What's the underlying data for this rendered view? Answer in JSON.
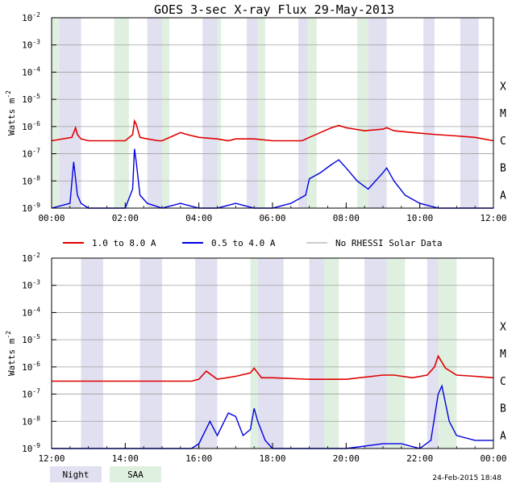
{
  "chart_data": [
    {
      "type": "line",
      "title": "GOES 3-sec X-ray Flux   29-May-2013",
      "ylabel": "Watts m",
      "ylabel_sup": "-2",
      "yscale": "log",
      "ylim": [
        1e-09,
        0.01
      ],
      "y_ticks": [
        {
          "base": "10",
          "exp": "-2"
        },
        {
          "base": "10",
          "exp": "-3"
        },
        {
          "base": "10",
          "exp": "-4"
        },
        {
          "base": "10",
          "exp": "-5"
        },
        {
          "base": "10",
          "exp": "-6"
        },
        {
          "base": "10",
          "exp": "-7"
        },
        {
          "base": "10",
          "exp": "-8"
        },
        {
          "base": "10",
          "exp": "-9"
        }
      ],
      "x_ticks": [
        "00:00",
        "02:00",
        "04:00",
        "06:00",
        "08:00",
        "10:00",
        "12:00"
      ],
      "xlim_hours": [
        0,
        12
      ],
      "flare_classes": [
        "X",
        "M",
        "C",
        "B",
        "A"
      ],
      "night_hours": [
        [
          0.2,
          0.8
        ],
        [
          2.6,
          3.0
        ],
        [
          4.1,
          4.5
        ],
        [
          5.3,
          5.6
        ],
        [
          6.7,
          6.95
        ],
        [
          8.6,
          9.1
        ],
        [
          10.1,
          10.4
        ],
        [
          11.1,
          11.6
        ]
      ],
      "saa_hours": [
        [
          0.0,
          0.2
        ],
        [
          1.7,
          2.1
        ],
        [
          3.0,
          3.2
        ],
        [
          4.5,
          4.6
        ],
        [
          5.6,
          5.8
        ],
        [
          6.95,
          7.2
        ],
        [
          8.3,
          8.6
        ]
      ],
      "series": [
        {
          "name": "1.0 to 8.0 A",
          "color": "#e00000",
          "x": [
            0,
            0.55,
            0.65,
            0.7,
            0.8,
            1.0,
            1.5,
            2.0,
            2.2,
            2.25,
            2.3,
            2.4,
            2.6,
            2.9,
            3.0,
            3.3,
            3.5,
            3.7,
            4.0,
            4.5,
            4.8,
            5.0,
            5.5,
            6.0,
            6.5,
            6.8,
            7.0,
            7.3,
            7.6,
            7.8,
            8.0,
            8.5,
            9.0,
            9.1,
            9.3,
            9.8,
            10.5,
            11.0,
            11.5,
            12.0
          ],
          "y": [
            3e-07,
            4e-07,
            9e-07,
            5e-07,
            3.5e-07,
            3e-07,
            3e-07,
            3e-07,
            5e-07,
            1.6e-06,
            1.2e-06,
            4e-07,
            3.5e-07,
            3e-07,
            3e-07,
            4.5e-07,
            6e-07,
            5e-07,
            4e-07,
            3.5e-07,
            3e-07,
            3.5e-07,
            3.5e-07,
            3e-07,
            3e-07,
            3e-07,
            4e-07,
            6e-07,
            9e-07,
            1.1e-06,
            9e-07,
            7e-07,
            8e-07,
            9e-07,
            7e-07,
            6e-07,
            5e-07,
            4.5e-07,
            4e-07,
            3e-07
          ]
        },
        {
          "name": "0.5 to 4.0 A",
          "color": "#0000e0",
          "x": [
            0,
            0.5,
            0.6,
            0.7,
            0.8,
            1.0,
            1.5,
            2.0,
            2.2,
            2.25,
            2.3,
            2.4,
            2.6,
            3.0,
            3.5,
            4.0,
            4.5,
            5.0,
            5.5,
            6.0,
            6.5,
            6.9,
            7.0,
            7.3,
            7.6,
            7.8,
            8.0,
            8.3,
            8.6,
            9.0,
            9.1,
            9.3,
            9.6,
            10.0,
            10.5,
            11.0,
            11.5,
            12.0
          ],
          "y": [
            1e-09,
            1.5e-09,
            5e-08,
            3e-09,
            1.5e-09,
            1e-09,
            1e-09,
            1e-09,
            5e-09,
            1.5e-07,
            5e-08,
            3e-09,
            1.5e-09,
            1e-09,
            1.5e-09,
            1e-09,
            1e-09,
            1.5e-09,
            1e-09,
            1e-09,
            1.5e-09,
            3e-09,
            1.2e-08,
            2e-08,
            4e-08,
            6e-08,
            3e-08,
            1e-08,
            5e-09,
            2e-08,
            3e-08,
            1e-08,
            3e-09,
            1.5e-09,
            1e-09,
            1e-09,
            1e-09,
            1e-09
          ]
        }
      ]
    },
    {
      "type": "line",
      "ylabel": "Watts m",
      "ylabel_sup": "-2",
      "yscale": "log",
      "ylim": [
        1e-09,
        0.01
      ],
      "y_ticks": [
        {
          "base": "10",
          "exp": "-2"
        },
        {
          "base": "10",
          "exp": "-3"
        },
        {
          "base": "10",
          "exp": "-4"
        },
        {
          "base": "10",
          "exp": "-5"
        },
        {
          "base": "10",
          "exp": "-6"
        },
        {
          "base": "10",
          "exp": "-7"
        },
        {
          "base": "10",
          "exp": "-8"
        },
        {
          "base": "10",
          "exp": "-9"
        }
      ],
      "x_ticks": [
        "12:00",
        "14:00",
        "16:00",
        "18:00",
        "20:00",
        "22:00",
        "00:00"
      ],
      "xlim_hours": [
        12,
        24
      ],
      "flare_classes": [
        "X",
        "M",
        "C",
        "B",
        "A"
      ],
      "night_hours": [
        [
          12.8,
          13.4
        ],
        [
          14.4,
          15.0
        ],
        [
          15.9,
          16.5
        ],
        [
          17.6,
          18.3
        ],
        [
          19.0,
          19.4
        ],
        [
          20.5,
          21.1
        ],
        [
          22.2,
          22.5
        ]
      ],
      "saa_hours": [
        [
          17.4,
          17.6
        ],
        [
          19.4,
          19.8
        ],
        [
          21.1,
          21.6
        ],
        [
          22.5,
          23.0
        ]
      ],
      "series": [
        {
          "name": "1.0 to 8.0 A",
          "color": "#e00000",
          "x": [
            12,
            13,
            14,
            15,
            15.8,
            16.0,
            16.2,
            16.5,
            17.0,
            17.4,
            17.5,
            17.7,
            18.0,
            19.0,
            20.0,
            21.0,
            21.3,
            21.8,
            22.2,
            22.4,
            22.5,
            22.7,
            23.0,
            23.5,
            24
          ],
          "y": [
            3e-07,
            3e-07,
            3e-07,
            3e-07,
            3e-07,
            3.5e-07,
            7e-07,
            3.5e-07,
            4.5e-07,
            6e-07,
            9e-07,
            4e-07,
            4e-07,
            3.5e-07,
            3.5e-07,
            5e-07,
            5e-07,
            4e-07,
            5e-07,
            1e-06,
            2.5e-06,
            9e-07,
            5e-07,
            4.5e-07,
            4e-07
          ]
        },
        {
          "name": "0.5 to 4.0 A",
          "color": "#0000e0",
          "x": [
            12,
            13,
            14,
            15,
            15.8,
            16.0,
            16.3,
            16.5,
            16.8,
            17.0,
            17.2,
            17.4,
            17.5,
            17.6,
            17.8,
            18.0,
            19.0,
            20.0,
            21.0,
            21.5,
            22.0,
            22.3,
            22.5,
            22.6,
            22.8,
            23.0,
            23.5,
            24
          ],
          "y": [
            1e-09,
            1e-09,
            1e-09,
            1e-09,
            1e-09,
            1.5e-09,
            1e-08,
            3e-09,
            2e-08,
            1.5e-08,
            3e-09,
            5e-09,
            3e-08,
            1e-08,
            2e-09,
            1e-09,
            1e-09,
            1e-09,
            1.5e-09,
            1.5e-09,
            1e-09,
            2e-09,
            1e-07,
            2e-07,
            1e-08,
            3e-09,
            2e-09,
            2e-09
          ]
        }
      ]
    }
  ],
  "legend": [
    {
      "label": "1.0 to 8.0 A",
      "color": "#e00000"
    },
    {
      "label": "0.5 to 4.0 A",
      "color": "#0000e0"
    },
    {
      "label": "No RHESSI Solar Data",
      "color": "#999999"
    }
  ],
  "bottom_legend": [
    {
      "label": "Night",
      "color": "#e0e0f0"
    },
    {
      "label": "SAA",
      "color": "#e0f0e0"
    }
  ],
  "timestamp": "24-Feb-2015 18:48"
}
